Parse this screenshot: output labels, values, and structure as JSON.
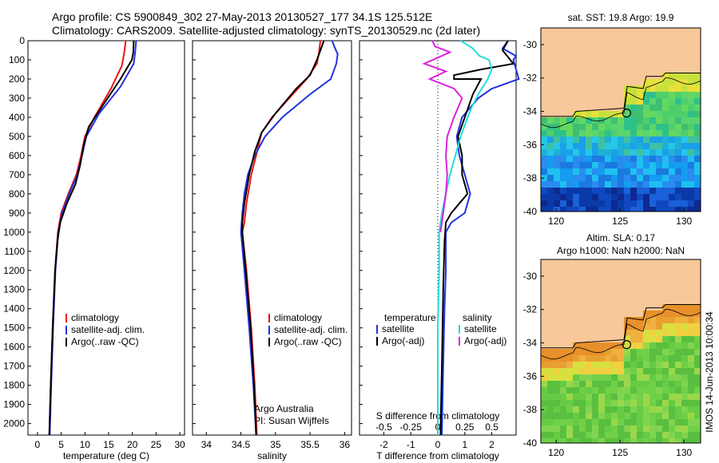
{
  "header": {
    "line1": "Argo profile: CS 5900849_302 27-May-2013 20130527_177 34.1S 125.512E",
    "line2": "Climatology: CARS2009. Satellite-adjusted climatology: synTS_20130529.nc (2d later)"
  },
  "colors": {
    "climatology": "#ee1111",
    "satellite": "#2233dd",
    "argo": "#000000",
    "salinity_satellite": "#22dddd",
    "salinity_argo": "#dd22dd",
    "land": "#f8c89a"
  },
  "side_text": "IMOS 14-Jun-2013 10:00:34",
  "chart_data": [
    {
      "type": "line",
      "id": "temperature-panel",
      "xlabel": "temperature (deg C)",
      "xticks": [
        0,
        5,
        10,
        15,
        20,
        25,
        30
      ],
      "xlim": [
        -2,
        31
      ],
      "ylim": [
        0,
        2060
      ],
      "yticks": [
        0,
        100,
        200,
        300,
        400,
        500,
        600,
        700,
        800,
        900,
        1000,
        1100,
        1200,
        1300,
        1400,
        1500,
        1600,
        1700,
        1800,
        1900,
        2000
      ],
      "y_reversed": true,
      "legend": [
        "climatology",
        "satellite-adj. clim.",
        "Argo(..raw -QC)"
      ],
      "series": [
        {
          "name": "climatology",
          "points": [
            [
              18.6,
              0
            ],
            [
              18.3,
              60
            ],
            [
              17.8,
              130
            ],
            [
              15.5,
              250
            ],
            [
              12,
              400
            ],
            [
              10,
              500
            ],
            [
              9.2,
              600
            ],
            [
              8.2,
              700
            ],
            [
              6.5,
              800
            ],
            [
              5,
              900
            ],
            [
              4.3,
              1000
            ],
            [
              3.7,
              1200
            ],
            [
              3.2,
              1500
            ],
            [
              2.8,
              1800
            ],
            [
              2.5,
              2060
            ]
          ]
        },
        {
          "name": "satellite-adj. clim.",
          "points": [
            [
              20.8,
              0
            ],
            [
              20.6,
              60
            ],
            [
              20.3,
              120
            ],
            [
              17.5,
              240
            ],
            [
              13,
              380
            ],
            [
              10.3,
              500
            ],
            [
              9.4,
              600
            ],
            [
              8.4,
              700
            ],
            [
              6.7,
              800
            ],
            [
              5.2,
              900
            ],
            [
              4.4,
              1000
            ],
            [
              3.8,
              1200
            ],
            [
              3.3,
              1500
            ],
            [
              2.9,
              1800
            ],
            [
              2.6,
              2060
            ]
          ]
        },
        {
          "name": "Argo(..raw -QC)",
          "points": [
            [
              20.3,
              0
            ],
            [
              20.2,
              60
            ],
            [
              19.9,
              100
            ],
            [
              17.5,
              200
            ],
            [
              14,
              330
            ],
            [
              10.8,
              450
            ],
            [
              9.7,
              550
            ],
            [
              9,
              650
            ],
            [
              8,
              750
            ],
            [
              6.2,
              850
            ],
            [
              4.8,
              950
            ],
            [
              4.2,
              1050
            ],
            [
              3.7,
              1200
            ],
            [
              3.2,
              1500
            ],
            [
              2.8,
              1800
            ],
            [
              2.5,
              2060
            ]
          ]
        }
      ]
    },
    {
      "type": "line",
      "id": "salinity-panel",
      "xlabel": "salinity",
      "xticks": [
        34,
        34.5,
        35,
        35.5,
        36
      ],
      "xlim": [
        33.8,
        36.1
      ],
      "ylim": [
        0,
        2060
      ],
      "y_reversed": true,
      "legend": [
        "climatology",
        "satellite-adj. clim.",
        "Argo(..raw -QC)"
      ],
      "annotation": [
        "Argo Australia",
        "PI: Susan Wijffels"
      ],
      "series": [
        {
          "name": "climatology",
          "points": [
            [
              35.65,
              0
            ],
            [
              35.63,
              60
            ],
            [
              35.6,
              120
            ],
            [
              35.45,
              200
            ],
            [
              35.2,
              300
            ],
            [
              34.95,
              400
            ],
            [
              34.8,
              480
            ],
            [
              34.72,
              600
            ],
            [
              34.65,
              700
            ],
            [
              34.58,
              850
            ],
            [
              34.55,
              950
            ],
            [
              34.52,
              1000
            ],
            [
              34.58,
              1200
            ],
            [
              34.65,
              1500
            ],
            [
              34.7,
              1800
            ],
            [
              34.73,
              2060
            ]
          ]
        },
        {
          "name": "satellite-adj. clim.",
          "points": [
            [
              35.82,
              0
            ],
            [
              35.85,
              30
            ],
            [
              35.9,
              70
            ],
            [
              35.88,
              120
            ],
            [
              35.8,
              200
            ],
            [
              35.5,
              280
            ],
            [
              35.1,
              400
            ],
            [
              34.85,
              500
            ],
            [
              34.7,
              600
            ],
            [
              34.6,
              700
            ],
            [
              34.55,
              800
            ],
            [
              34.52,
              900
            ],
            [
              34.5,
              1000
            ],
            [
              34.55,
              1200
            ],
            [
              34.62,
              1500
            ],
            [
              34.68,
              1800
            ],
            [
              34.72,
              2060
            ]
          ]
        },
        {
          "name": "Argo(..raw -QC)",
          "points": [
            [
              35.7,
              0
            ],
            [
              35.65,
              50
            ],
            [
              35.6,
              100
            ],
            [
              35.5,
              180
            ],
            [
              35.3,
              250
            ],
            [
              35.0,
              380
            ],
            [
              34.8,
              480
            ],
            [
              34.7,
              580
            ],
            [
              34.62,
              700
            ],
            [
              34.55,
              850
            ],
            [
              34.52,
              950
            ],
            [
              34.52,
              1000
            ],
            [
              34.57,
              1200
            ],
            [
              34.64,
              1500
            ],
            [
              34.69,
              1800
            ],
            [
              34.72,
              2060
            ]
          ]
        }
      ]
    },
    {
      "type": "line",
      "id": "difference-panel",
      "xlabel": "T difference from climatology",
      "xlabel_top": "S difference from climatology",
      "xticks": [
        -2,
        -1,
        0,
        1,
        2
      ],
      "xticks_top": [
        -0.5,
        -0.25,
        0,
        0.25,
        0.5
      ],
      "xlim": [
        -2.9,
        2.9
      ],
      "ylim": [
        0,
        2060
      ],
      "y_reversed": true,
      "legend_left": [
        "temperature",
        "satellite",
        "Argo(-adj)"
      ],
      "legend_right": [
        "salinity",
        "satellite",
        "Argo(-adj)"
      ],
      "series": [
        {
          "name": "T satellite",
          "points": [
            [
              2.6,
              0
            ],
            [
              2.4,
              40
            ],
            [
              2.9,
              80
            ],
            [
              2.8,
              100
            ],
            [
              3.0,
              200
            ],
            [
              2.0,
              250
            ],
            [
              1.5,
              300
            ],
            [
              0.9,
              400
            ],
            [
              0.7,
              500
            ],
            [
              0.8,
              600
            ],
            [
              1.0,
              700
            ],
            [
              1.2,
              800
            ],
            [
              1.0,
              900
            ],
            [
              0.5,
              950
            ],
            [
              0.3,
              1000
            ],
            [
              0.3,
              1100
            ],
            [
              0.3,
              1200
            ],
            [
              0.25,
              1400
            ],
            [
              0.2,
              1700
            ],
            [
              0.15,
              2060
            ]
          ]
        },
        {
          "name": "T Argo(-adj)",
          "points": [
            [
              2.6,
              0
            ],
            [
              2.4,
              50
            ],
            [
              2.8,
              120
            ],
            [
              1.6,
              150
            ],
            [
              0.6,
              180
            ],
            [
              0.6,
              200
            ],
            [
              1.6,
              200
            ],
            [
              1.3,
              280
            ],
            [
              1.0,
              400
            ],
            [
              0.75,
              500
            ],
            [
              0.9,
              600
            ],
            [
              0.9,
              700
            ],
            [
              1.1,
              800
            ],
            [
              0.8,
              850
            ],
            [
              0.5,
              900
            ],
            [
              0.3,
              950
            ],
            [
              0.25,
              1050
            ],
            [
              0.2,
              1300
            ],
            [
              0.15,
              1700
            ],
            [
              0.1,
              2060
            ]
          ]
        },
        {
          "name": "S satellite",
          "points": [
            [
              0.85,
              0
            ],
            [
              1.3,
              40
            ],
            [
              1.55,
              80
            ],
            [
              1.9,
              100
            ],
            [
              2.0,
              150
            ],
            [
              1.85,
              200
            ],
            [
              1.5,
              280
            ],
            [
              1.25,
              350
            ],
            [
              1.05,
              420
            ],
            [
              0.85,
              500
            ],
            [
              0.65,
              600
            ],
            [
              0.45,
              700
            ],
            [
              0.3,
              800
            ],
            [
              0.15,
              900
            ],
            [
              0.05,
              1000
            ],
            [
              0.05,
              1200
            ],
            [
              0,
              1500
            ],
            [
              0,
              1800
            ],
            [
              0,
              2060
            ]
          ]
        },
        {
          "name": "S Argo(-adj)",
          "points": [
            [
              -0.2,
              0
            ],
            [
              -0.1,
              30
            ],
            [
              0.45,
              60
            ],
            [
              -0.5,
              120
            ],
            [
              0.3,
              160
            ],
            [
              -0.3,
              200
            ],
            [
              0.6,
              250
            ],
            [
              0.9,
              300
            ],
            [
              0.6,
              400
            ],
            [
              0.35,
              500
            ],
            [
              0.3,
              600
            ],
            [
              0.35,
              700
            ],
            [
              0.3,
              800
            ],
            [
              0.2,
              900
            ],
            [
              0.1,
              1000
            ]
          ]
        }
      ]
    },
    {
      "type": "heatmap",
      "id": "sst-map",
      "title": "sat. SST: 19.8  Argo: 19.9",
      "xticks": [
        120,
        125,
        130
      ],
      "yticks": [
        -30,
        -32,
        -34,
        -36,
        -38,
        -40
      ],
      "xlim": [
        118.8,
        131.3
      ],
      "ylim": [
        -40,
        -29
      ],
      "marker": {
        "lon": 125.51,
        "lat": -34.1
      }
    },
    {
      "type": "heatmap",
      "id": "sla-map",
      "title": "Altim. SLA: 0.17",
      "subtitle": "Argo h1000: NaN h2000: NaN",
      "xticks": [
        120,
        125,
        130
      ],
      "yticks": [
        -30,
        -32,
        -34,
        -36,
        -38,
        -40
      ],
      "xlim": [
        118.8,
        131.3
      ],
      "ylim": [
        -40,
        -29
      ],
      "marker": {
        "lon": 125.51,
        "lat": -34.1
      }
    }
  ]
}
